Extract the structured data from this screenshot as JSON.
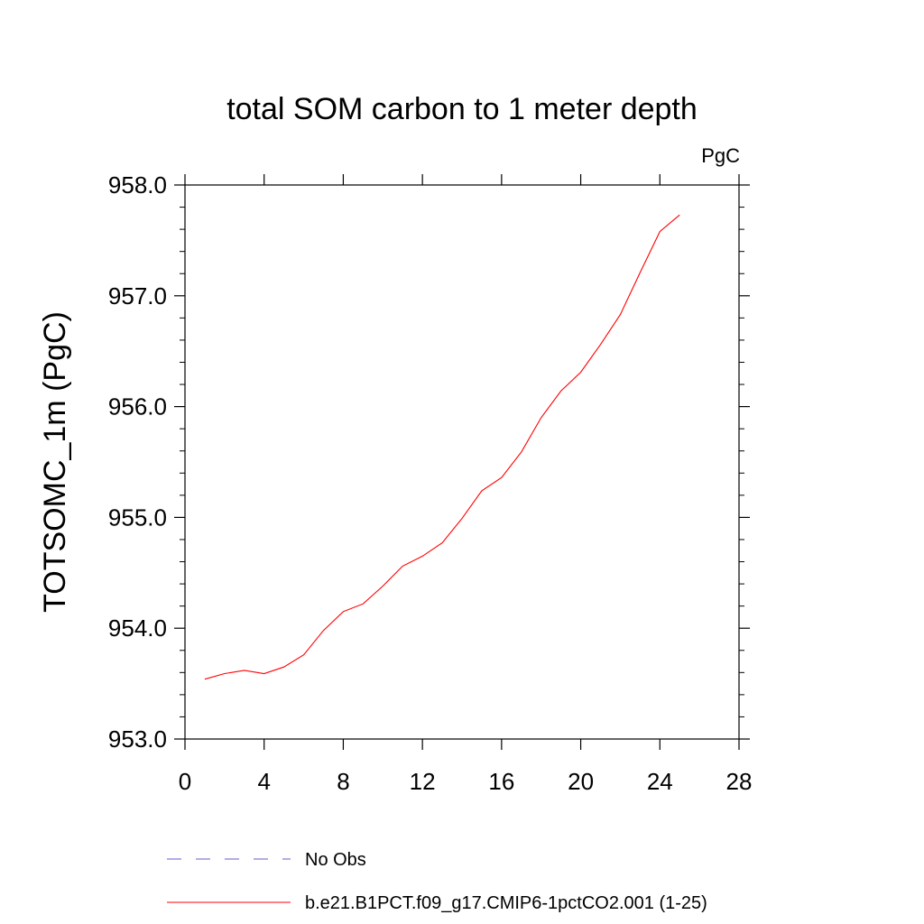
{
  "chart_data": {
    "type": "line",
    "title": "total SOM carbon to 1 meter depth",
    "units": "PgC",
    "xlabel": "",
    "ylabel": "TOTSOMC_1m  (PgC)",
    "xlim": [
      0,
      28
    ],
    "ylim": [
      953.0,
      958.0
    ],
    "x_ticks": [
      0,
      4,
      8,
      12,
      16,
      20,
      24,
      28
    ],
    "x_tick_labels": [
      "0",
      "4",
      "8",
      "12",
      "16",
      "20",
      "24",
      "28"
    ],
    "y_ticks": [
      953.0,
      954.0,
      955.0,
      956.0,
      957.0,
      958.0
    ],
    "y_tick_labels": [
      "953.0",
      "954.0",
      "955.0",
      "956.0",
      "957.0",
      "958.0"
    ],
    "grid": false,
    "series": [
      {
        "name": "b.e21.B1PCT.f09_g17.CMIP6-1pctCO2.001 (1-25)",
        "color": "#ff0000",
        "x": [
          1,
          2,
          3,
          4,
          5,
          6,
          7,
          8,
          9,
          10,
          11,
          12,
          13,
          14,
          15,
          16,
          17,
          18,
          19,
          20,
          21,
          22,
          23,
          24,
          25
        ],
        "y": [
          953.54,
          953.59,
          953.62,
          953.59,
          953.65,
          953.76,
          953.98,
          954.15,
          954.22,
          954.38,
          954.56,
          954.65,
          954.77,
          954.99,
          955.24,
          955.36,
          955.59,
          955.9,
          956.14,
          956.31,
          956.56,
          956.83,
          957.21,
          957.58,
          957.73
        ]
      }
    ],
    "legend": {
      "placement": "bottom",
      "entries": [
        {
          "label": "No Obs",
          "color": "#6a5acd",
          "style": "dashed"
        },
        {
          "label": "b.e21.B1PCT.f09_g17.CMIP6-1pctCO2.001 (1-25)",
          "color": "#ff0000",
          "style": "solid"
        }
      ]
    }
  }
}
